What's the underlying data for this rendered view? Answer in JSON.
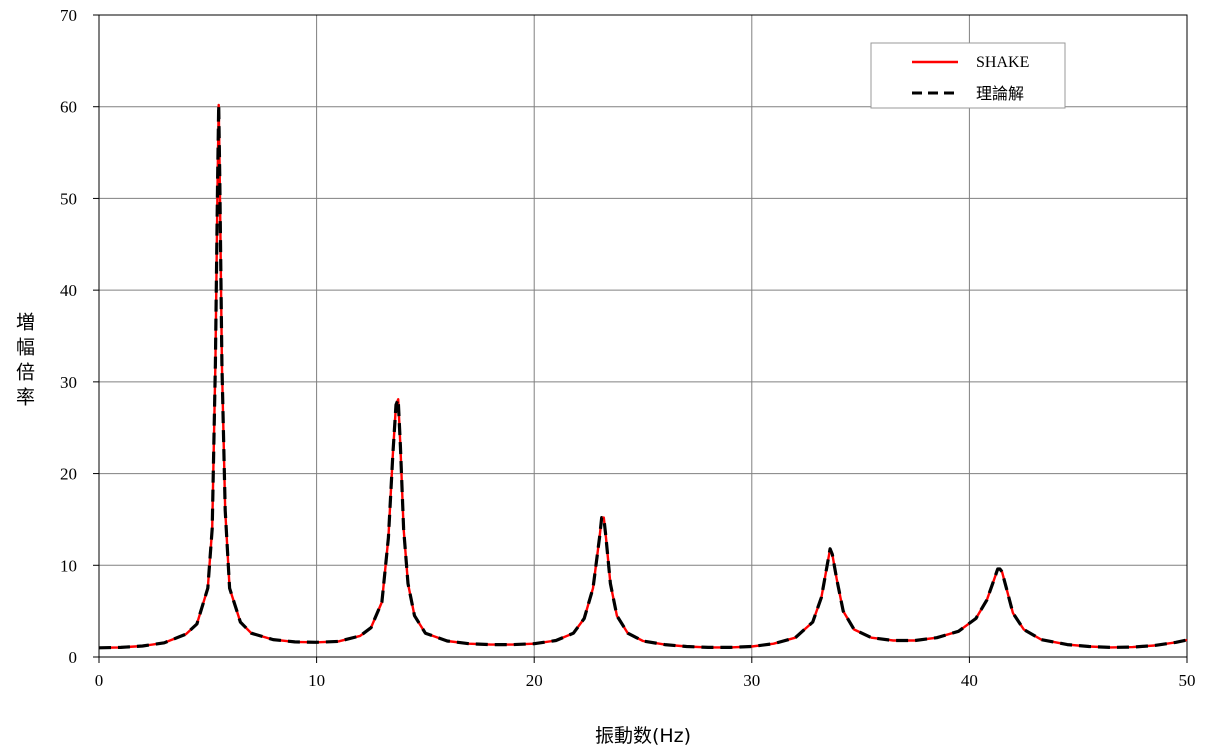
{
  "chart_data": {
    "type": "line",
    "xlabel": "振動数(Hz)",
    "ylabel": "増幅倍率",
    "xlim": [
      0,
      50
    ],
    "ylim": [
      0,
      70
    ],
    "x_ticks": [
      0,
      10,
      20,
      30,
      40,
      50
    ],
    "y_ticks": [
      0,
      10,
      20,
      30,
      40,
      50,
      60,
      70
    ],
    "grid": true,
    "legend_position": "top-right",
    "series": [
      {
        "name": "SHAKE",
        "color": "#ff0000",
        "style": "solid",
        "x": [
          0,
          1,
          2,
          3,
          4,
          4.5,
          5,
          5.2,
          5.35,
          5.45,
          5.5,
          5.55,
          5.65,
          5.8,
          6,
          6.5,
          7,
          8,
          9,
          10,
          11,
          12,
          12.5,
          13,
          13.3,
          13.5,
          13.65,
          13.75,
          13.85,
          14,
          14.2,
          14.5,
          15,
          16,
          17,
          18,
          19,
          20,
          21,
          21.8,
          22.3,
          22.7,
          23,
          23.1,
          23.2,
          23.3,
          23.5,
          23.8,
          24.3,
          25,
          26,
          27,
          28,
          29,
          30,
          31,
          32,
          32.8,
          33.2,
          33.5,
          33.6,
          33.7,
          33.9,
          34.2,
          34.7,
          35.5,
          36.5,
          37.5,
          38.5,
          39.5,
          40.3,
          40.8,
          41.1,
          41.3,
          41.4,
          41.5,
          41.7,
          42,
          42.5,
          43.3,
          44.5,
          45.5,
          46.5,
          47.5,
          48.5,
          49.5,
          50
        ],
        "y": [
          1.0,
          1.05,
          1.2,
          1.55,
          2.5,
          3.6,
          7.5,
          14,
          32,
          52,
          60.2,
          52,
          32,
          16,
          7.5,
          3.8,
          2.6,
          1.9,
          1.65,
          1.6,
          1.7,
          2.3,
          3.2,
          6,
          13,
          22,
          27.5,
          28.1,
          23,
          14,
          8,
          4.5,
          2.6,
          1.75,
          1.45,
          1.35,
          1.35,
          1.45,
          1.8,
          2.6,
          4.2,
          7.5,
          13,
          15.2,
          15.2,
          13,
          8,
          4.5,
          2.6,
          1.75,
          1.35,
          1.15,
          1.05,
          1.05,
          1.15,
          1.45,
          2.1,
          3.8,
          6.5,
          10.5,
          11.8,
          11.2,
          8.5,
          5,
          3,
          2.1,
          1.8,
          1.8,
          2.1,
          2.8,
          4.2,
          6.2,
          8.2,
          9.6,
          9.6,
          9.3,
          7.5,
          4.8,
          3,
          1.9,
          1.35,
          1.15,
          1.05,
          1.08,
          1.25,
          1.6,
          1.85
        ]
      },
      {
        "name": "理論解",
        "color": "#000000",
        "style": "dashed",
        "x": [
          0,
          1,
          2,
          3,
          4,
          4.5,
          5,
          5.2,
          5.35,
          5.45,
          5.5,
          5.55,
          5.65,
          5.8,
          6,
          6.5,
          7,
          8,
          9,
          10,
          11,
          12,
          12.5,
          13,
          13.3,
          13.5,
          13.65,
          13.75,
          13.85,
          14,
          14.2,
          14.5,
          15,
          16,
          17,
          18,
          19,
          20,
          21,
          21.8,
          22.3,
          22.7,
          23,
          23.1,
          23.2,
          23.3,
          23.5,
          23.8,
          24.3,
          25,
          26,
          27,
          28,
          29,
          30,
          31,
          32,
          32.8,
          33.2,
          33.5,
          33.6,
          33.7,
          33.9,
          34.2,
          34.7,
          35.5,
          36.5,
          37.5,
          38.5,
          39.5,
          40.3,
          40.8,
          41.1,
          41.3,
          41.4,
          41.5,
          41.7,
          42,
          42.5,
          43.3,
          44.5,
          45.5,
          46.5,
          47.5,
          48.5,
          49.5,
          50
        ],
        "y": [
          1.0,
          1.05,
          1.2,
          1.55,
          2.5,
          3.6,
          7.5,
          14,
          32,
          52,
          60.2,
          52,
          32,
          16,
          7.5,
          3.8,
          2.6,
          1.9,
          1.65,
          1.6,
          1.7,
          2.3,
          3.2,
          6,
          13,
          22,
          27.5,
          28.1,
          23,
          14,
          8,
          4.5,
          2.6,
          1.75,
          1.45,
          1.35,
          1.35,
          1.45,
          1.8,
          2.6,
          4.2,
          7.5,
          13,
          15.2,
          15.2,
          13,
          8,
          4.5,
          2.6,
          1.75,
          1.35,
          1.15,
          1.05,
          1.05,
          1.15,
          1.45,
          2.1,
          3.8,
          6.5,
          10.5,
          11.8,
          11.2,
          8.5,
          5,
          3,
          2.1,
          1.8,
          1.8,
          2.1,
          2.8,
          4.2,
          6.2,
          8.2,
          9.6,
          9.6,
          9.3,
          7.5,
          4.8,
          3,
          1.9,
          1.35,
          1.15,
          1.05,
          1.08,
          1.25,
          1.6,
          1.85
        ]
      }
    ]
  }
}
